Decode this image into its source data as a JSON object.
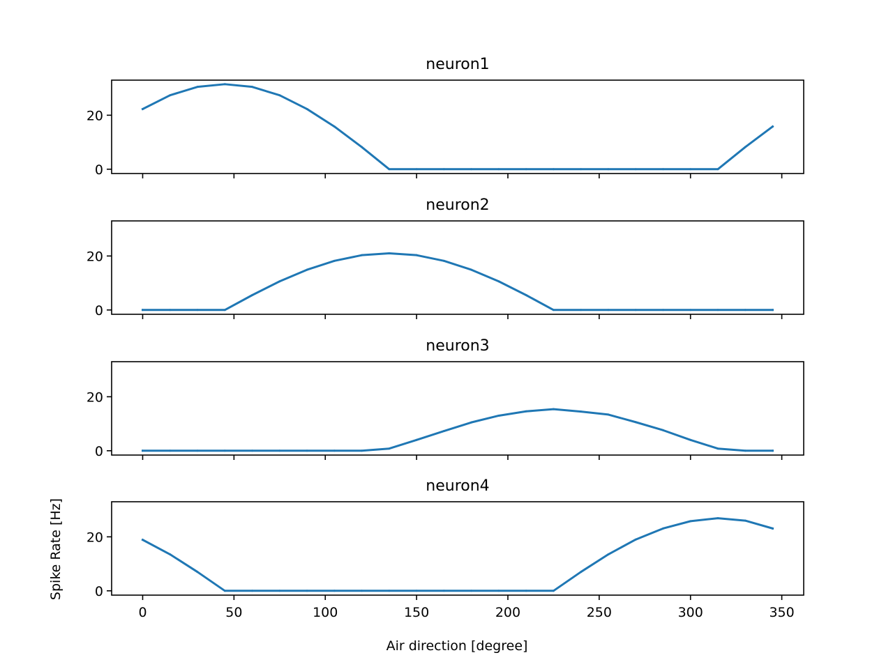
{
  "chart_data": {
    "type": "line",
    "xlabel": "Air direction [degree]",
    "ylabel": "Spike Rate [Hz]",
    "x_ticks": [
      "0",
      "50",
      "100",
      "150",
      "200",
      "250",
      "300",
      "350"
    ],
    "y_ticks": [
      "0",
      "20"
    ],
    "xlim": [
      -17,
      362
    ],
    "ylim": [
      -1.6,
      33
    ],
    "line_color": "#1f77b4",
    "x": [
      0,
      15,
      30,
      45,
      60,
      75,
      90,
      105,
      120,
      135,
      150,
      165,
      180,
      195,
      210,
      225,
      240,
      255,
      270,
      285,
      300,
      315,
      330,
      345
    ],
    "panels": [
      {
        "title": "neuron1",
        "values": [
          22.3,
          27.4,
          30.5,
          31.5,
          30.5,
          27.4,
          22.3,
          15.8,
          8.2,
          0,
          0,
          0,
          0,
          0,
          0,
          0,
          0,
          0,
          0,
          0,
          0,
          0,
          8.2,
          15.8
        ]
      },
      {
        "title": "neuron2",
        "values": [
          0,
          0,
          0,
          0,
          5.5,
          10.6,
          14.9,
          18.2,
          20.3,
          21.0,
          20.3,
          18.2,
          14.9,
          10.6,
          5.5,
          0,
          0,
          0,
          0,
          0,
          0,
          0,
          0,
          0
        ]
      },
      {
        "title": "neuron3",
        "values": [
          0,
          0,
          0,
          0,
          0,
          0,
          0,
          0,
          0,
          0.8,
          4.0,
          7.3,
          10.5,
          13.0,
          14.6,
          15.4,
          14.5,
          13.4,
          10.6,
          7.6,
          4.0,
          0.8,
          0,
          0
        ]
      },
      {
        "title": "neuron4",
        "values": [
          18.9,
          13.5,
          7.0,
          0,
          0,
          0,
          0,
          0,
          0,
          0,
          0,
          0,
          0,
          0,
          0,
          0,
          7.0,
          13.5,
          19.0,
          23.1,
          25.8,
          26.9,
          26.0,
          23.1
        ]
      }
    ],
    "grid": false,
    "legend": "none"
  }
}
